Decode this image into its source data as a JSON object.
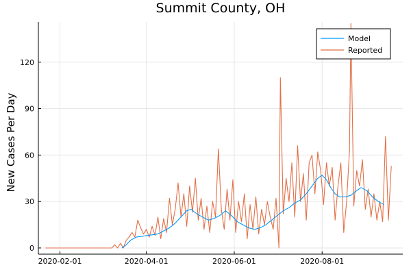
{
  "chart_data": {
    "type": "line",
    "title": "Summit County, OH",
    "xlabel": "",
    "ylabel": "New Cases Per Day",
    "x_ticks": [
      "2020-02-01",
      "2020-04-01",
      "2020-06-01",
      "2020-08-01"
    ],
    "y_ticks": [
      0,
      30,
      60,
      90,
      120
    ],
    "xlim": [
      "2020-01-17",
      "2020-09-26"
    ],
    "ylim": [
      -4,
      146
    ],
    "grid": true,
    "legend_position": "top-right",
    "series": [
      {
        "name": "Model",
        "color": "#009af9",
        "points": [
          [
            "2020-03-15",
            0
          ],
          [
            "2020-03-18",
            2
          ],
          [
            "2020-03-21",
            5
          ],
          [
            "2020-03-25",
            7
          ],
          [
            "2020-03-29",
            7.5
          ],
          [
            "2020-04-01",
            8
          ],
          [
            "2020-04-05",
            8.5
          ],
          [
            "2020-04-09",
            9
          ],
          [
            "2020-04-13",
            11
          ],
          [
            "2020-04-17",
            13
          ],
          [
            "2020-04-21",
            16
          ],
          [
            "2020-04-25",
            20
          ],
          [
            "2020-04-29",
            24
          ],
          [
            "2020-05-02",
            25
          ],
          [
            "2020-05-06",
            22
          ],
          [
            "2020-05-10",
            20
          ],
          [
            "2020-05-14",
            18
          ],
          [
            "2020-05-18",
            19
          ],
          [
            "2020-05-22",
            21
          ],
          [
            "2020-05-26",
            24
          ],
          [
            "2020-05-30",
            21
          ],
          [
            "2020-06-03",
            17
          ],
          [
            "2020-06-07",
            15
          ],
          [
            "2020-06-11",
            13
          ],
          [
            "2020-06-15",
            12
          ],
          [
            "2020-06-19",
            13
          ],
          [
            "2020-06-23",
            15
          ],
          [
            "2020-06-27",
            18
          ],
          [
            "2020-07-01",
            21
          ],
          [
            "2020-07-05",
            24
          ],
          [
            "2020-07-09",
            26
          ],
          [
            "2020-07-13",
            29
          ],
          [
            "2020-07-17",
            31
          ],
          [
            "2020-07-21",
            35
          ],
          [
            "2020-07-25",
            40
          ],
          [
            "2020-07-29",
            45
          ],
          [
            "2020-08-01",
            47
          ],
          [
            "2020-08-04",
            44
          ],
          [
            "2020-08-07",
            39
          ],
          [
            "2020-08-10",
            35
          ],
          [
            "2020-08-13",
            33
          ],
          [
            "2020-08-17",
            33
          ],
          [
            "2020-08-21",
            34
          ],
          [
            "2020-08-25",
            37
          ],
          [
            "2020-08-28",
            39
          ],
          [
            "2020-09-01",
            37
          ],
          [
            "2020-09-05",
            33
          ],
          [
            "2020-09-09",
            30
          ],
          [
            "2020-09-13",
            28
          ]
        ]
      },
      {
        "name": "Reported",
        "color": "#e26f46",
        "points": [
          [
            "2020-01-22",
            0
          ],
          [
            "2020-02-01",
            0
          ],
          [
            "2020-02-15",
            0
          ],
          [
            "2020-03-01",
            0
          ],
          [
            "2020-03-08",
            0
          ],
          [
            "2020-03-10",
            2
          ],
          [
            "2020-03-12",
            0
          ],
          [
            "2020-03-14",
            3
          ],
          [
            "2020-03-16",
            0
          ],
          [
            "2020-03-18",
            5
          ],
          [
            "2020-03-20",
            7
          ],
          [
            "2020-03-22",
            10
          ],
          [
            "2020-03-24",
            7
          ],
          [
            "2020-03-26",
            18
          ],
          [
            "2020-03-28",
            13
          ],
          [
            "2020-03-30",
            9
          ],
          [
            "2020-04-01",
            12
          ],
          [
            "2020-04-03",
            7
          ],
          [
            "2020-04-05",
            14
          ],
          [
            "2020-04-07",
            8
          ],
          [
            "2020-04-09",
            20
          ],
          [
            "2020-04-11",
            6
          ],
          [
            "2020-04-13",
            19
          ],
          [
            "2020-04-15",
            10
          ],
          [
            "2020-04-17",
            32
          ],
          [
            "2020-04-19",
            15
          ],
          [
            "2020-04-21",
            25
          ],
          [
            "2020-04-23",
            42
          ],
          [
            "2020-04-25",
            20
          ],
          [
            "2020-04-27",
            35
          ],
          [
            "2020-04-29",
            14
          ],
          [
            "2020-05-01",
            40
          ],
          [
            "2020-05-03",
            23
          ],
          [
            "2020-05-05",
            45
          ],
          [
            "2020-05-07",
            18
          ],
          [
            "2020-05-09",
            32
          ],
          [
            "2020-05-11",
            12
          ],
          [
            "2020-05-13",
            27
          ],
          [
            "2020-05-15",
            10
          ],
          [
            "2020-05-17",
            30
          ],
          [
            "2020-05-19",
            20
          ],
          [
            "2020-05-21",
            64
          ],
          [
            "2020-05-23",
            25
          ],
          [
            "2020-05-25",
            12
          ],
          [
            "2020-05-27",
            38
          ],
          [
            "2020-05-29",
            18
          ],
          [
            "2020-05-31",
            44
          ],
          [
            "2020-06-02",
            10
          ],
          [
            "2020-06-04",
            30
          ],
          [
            "2020-06-06",
            17
          ],
          [
            "2020-06-08",
            35
          ],
          [
            "2020-06-10",
            6
          ],
          [
            "2020-06-12",
            28
          ],
          [
            "2020-06-14",
            12
          ],
          [
            "2020-06-16",
            33
          ],
          [
            "2020-06-18",
            9
          ],
          [
            "2020-06-20",
            25
          ],
          [
            "2020-06-22",
            15
          ],
          [
            "2020-06-24",
            30
          ],
          [
            "2020-06-26",
            20
          ],
          [
            "2020-06-28",
            12
          ],
          [
            "2020-06-30",
            32
          ],
          [
            "2020-07-02",
            0
          ],
          [
            "2020-07-03",
            110
          ],
          [
            "2020-07-05",
            22
          ],
          [
            "2020-07-07",
            45
          ],
          [
            "2020-07-09",
            30
          ],
          [
            "2020-07-11",
            55
          ],
          [
            "2020-07-13",
            20
          ],
          [
            "2020-07-15",
            66
          ],
          [
            "2020-07-17",
            30
          ],
          [
            "2020-07-19",
            48
          ],
          [
            "2020-07-21",
            18
          ],
          [
            "2020-07-23",
            55
          ],
          [
            "2020-07-25",
            60
          ],
          [
            "2020-07-27",
            35
          ],
          [
            "2020-07-29",
            62
          ],
          [
            "2020-07-31",
            50
          ],
          [
            "2020-08-02",
            28
          ],
          [
            "2020-08-04",
            55
          ],
          [
            "2020-08-06",
            40
          ],
          [
            "2020-08-08",
            52
          ],
          [
            "2020-08-10",
            18
          ],
          [
            "2020-08-12",
            40
          ],
          [
            "2020-08-14",
            55
          ],
          [
            "2020-08-16",
            10
          ],
          [
            "2020-08-18",
            30
          ],
          [
            "2020-08-20",
            63
          ],
          [
            "2020-08-21",
            145
          ],
          [
            "2020-08-23",
            27
          ],
          [
            "2020-08-25",
            50
          ],
          [
            "2020-08-27",
            40
          ],
          [
            "2020-08-29",
            57
          ],
          [
            "2020-08-31",
            25
          ],
          [
            "2020-09-02",
            38
          ],
          [
            "2020-09-04",
            20
          ],
          [
            "2020-09-06",
            35
          ],
          [
            "2020-09-08",
            18
          ],
          [
            "2020-09-10",
            30
          ],
          [
            "2020-09-12",
            17
          ],
          [
            "2020-09-14",
            72
          ],
          [
            "2020-09-16",
            18
          ],
          [
            "2020-09-18",
            53
          ]
        ]
      }
    ]
  }
}
